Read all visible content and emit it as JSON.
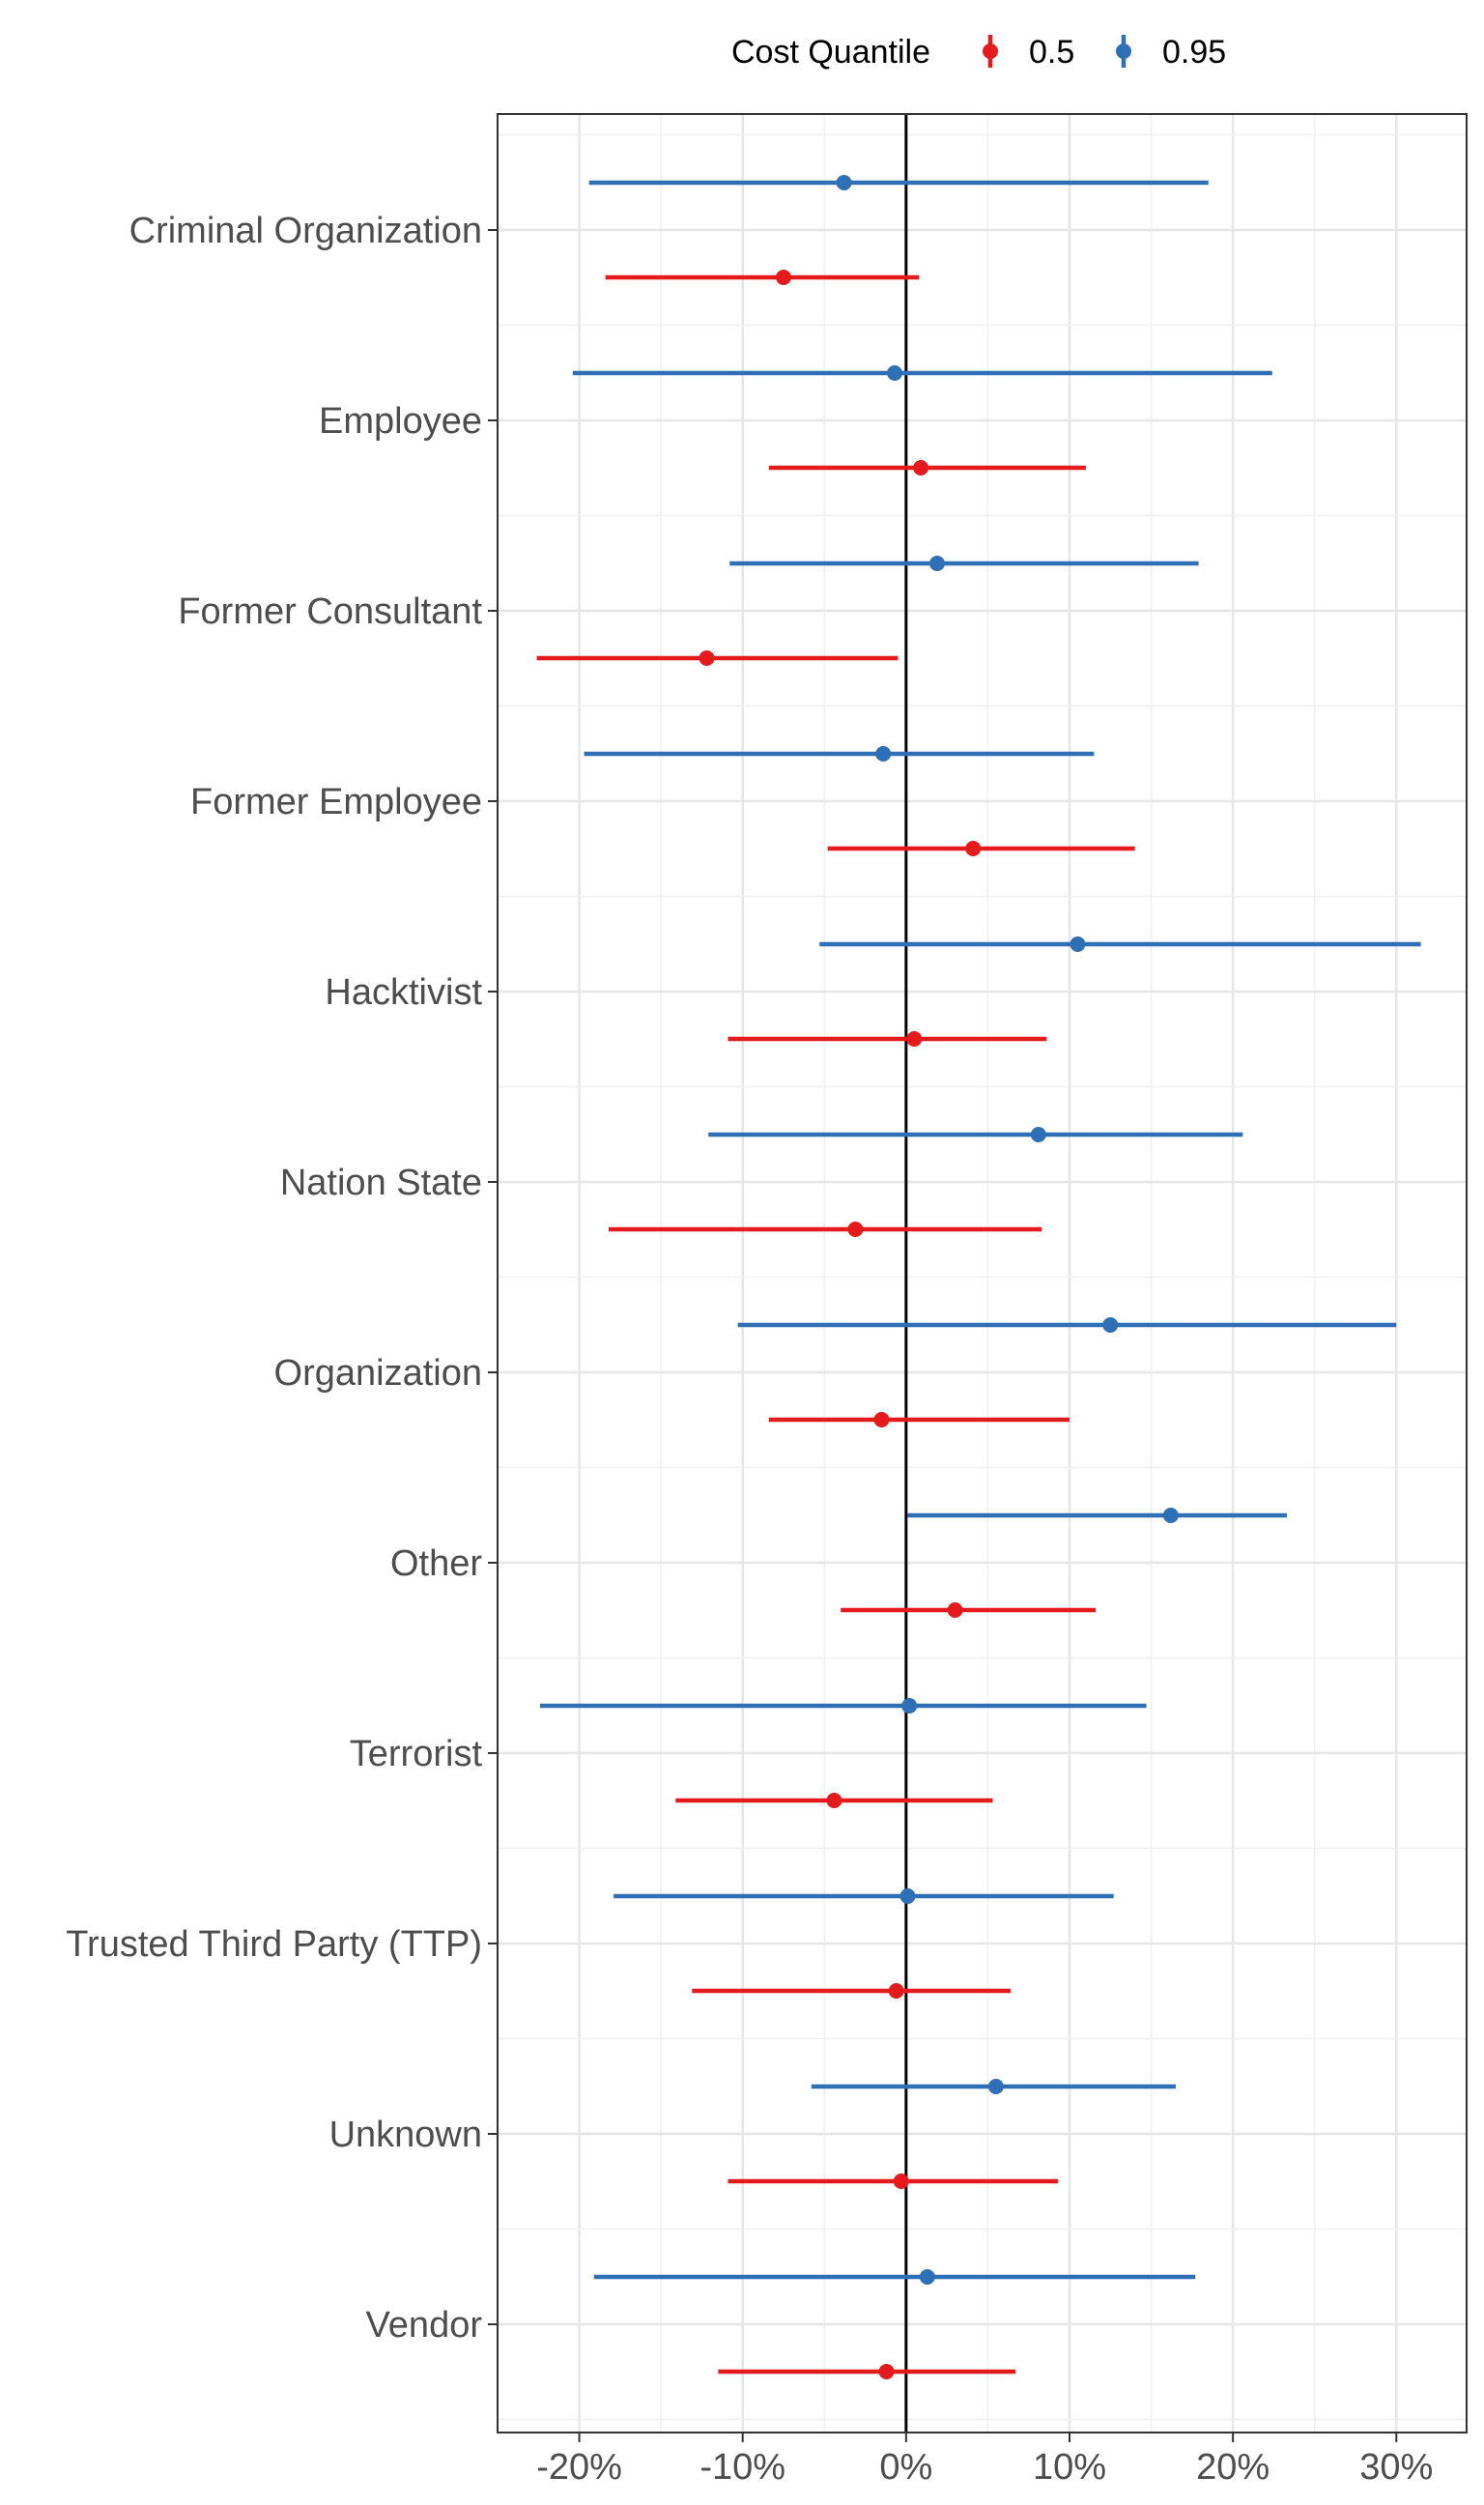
{
  "chart_data": {
    "type": "dot-and-whisker",
    "categories": [
      "Criminal Organization",
      "Employee",
      "Former Consultant",
      "Former Employee",
      "Hacktivist",
      "Nation State",
      "Organization",
      "Other",
      "Terrorist",
      "Trusted Third Party (TTP)",
      "Unknown",
      "Vendor"
    ],
    "legend": {
      "title": "Cost Quantile",
      "placement": "top"
    },
    "x_ticks": [
      "-20%",
      "-10%",
      "0%",
      "10%",
      "20%",
      "30%"
    ],
    "x_tick_values": [
      -20,
      -10,
      0,
      10,
      20,
      30
    ],
    "xlim": [
      -25,
      34.3
    ],
    "reference_line_x": 0,
    "grid": true,
    "series": [
      {
        "name": "0.5",
        "color": "#e41a1c",
        "estimate": [
          -7.5,
          0.9,
          -12.2,
          4.1,
          0.5,
          -3.1,
          -1.5,
          3.0,
          -4.4,
          -0.6,
          -0.3,
          -1.2
        ],
        "lower": [
          -18.4,
          -8.4,
          -22.6,
          -4.8,
          -10.9,
          -18.2,
          -8.4,
          -4.0,
          -14.1,
          -13.1,
          -10.9,
          -11.5
        ],
        "upper": [
          0.8,
          11.0,
          -0.5,
          14.0,
          8.6,
          8.3,
          10.0,
          11.6,
          5.3,
          6.4,
          9.3,
          6.7
        ]
      },
      {
        "name": "0.95",
        "color": "#2e6fb5",
        "estimate": [
          -3.8,
          -0.7,
          1.9,
          -1.4,
          10.5,
          8.1,
          12.5,
          16.2,
          0.2,
          0.1,
          5.5,
          1.3
        ],
        "lower": [
          -19.4,
          -20.4,
          -10.8,
          -19.7,
          -5.3,
          -12.1,
          -10.3,
          0.1,
          -22.4,
          -17.9,
          -5.8,
          -19.1
        ],
        "upper": [
          18.5,
          22.4,
          17.9,
          11.5,
          31.5,
          20.6,
          30.0,
          23.3,
          14.7,
          12.7,
          16.5,
          17.7
        ]
      }
    ]
  }
}
